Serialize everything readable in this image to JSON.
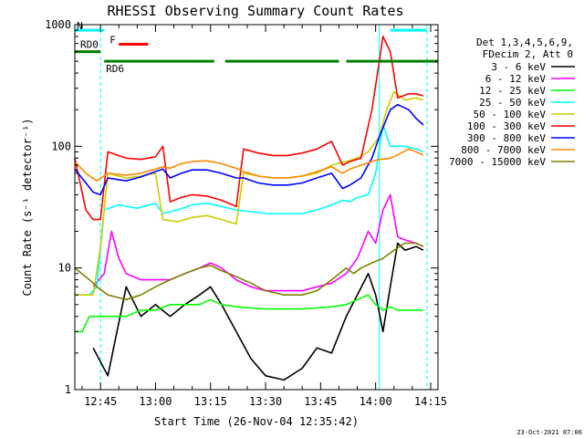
{
  "chart_data": {
    "type": "line",
    "title": "RHESSI Observing Summary Count Rates",
    "xlabel": "Start Time (26-Nov-04 12:35:42)",
    "ylabel": "Count Rate (s⁻¹ detector⁻¹)",
    "ylog": true,
    "ylim": [
      1,
      1000
    ],
    "xlim_minutes": [
      38,
      137
    ],
    "x_ticks": [
      {
        "label": "12:45",
        "minute": 45
      },
      {
        "label": "13:00",
        "minute": 60
      },
      {
        "label": "13:15",
        "minute": 75
      },
      {
        "label": "13:30",
        "minute": 90
      },
      {
        "label": "13:45",
        "minute": 105
      },
      {
        "label": "14:00",
        "minute": 120
      },
      {
        "label": "14:15",
        "minute": 135
      }
    ],
    "y_ticks": [
      {
        "label": "1",
        "value": 1
      },
      {
        "label": "10",
        "value": 10
      },
      {
        "label": "100",
        "value": 100
      },
      {
        "label": "1000",
        "value": 1000
      }
    ],
    "legend_header": [
      "Det 1,3,4,5,6,9,",
      "FDecim 2, Att 0"
    ],
    "legend_placement": "right",
    "series": [
      {
        "name": "3 - 6 keV",
        "color": "#000000",
        "points": [
          [
            43,
            2.2
          ],
          [
            47,
            1.3
          ],
          [
            52,
            7
          ],
          [
            56,
            4
          ],
          [
            60,
            5
          ],
          [
            64,
            4
          ],
          [
            68,
            5
          ],
          [
            72,
            6
          ],
          [
            75,
            7
          ],
          [
            78,
            5
          ],
          [
            82,
            3
          ],
          [
            86,
            1.8
          ],
          [
            90,
            1.3
          ],
          [
            95,
            1.2
          ],
          [
            100,
            1.5
          ],
          [
            104,
            2.2
          ],
          [
            108,
            2
          ],
          [
            112,
            4
          ],
          [
            115,
            6
          ],
          [
            118,
            9
          ],
          [
            120,
            6
          ],
          [
            122,
            3
          ],
          [
            124,
            7
          ],
          [
            126,
            16
          ],
          [
            128,
            14
          ],
          [
            131,
            15
          ],
          [
            133,
            14
          ]
        ]
      },
      {
        "name": "6 - 12 keV",
        "color": "#ff00ff",
        "points": [
          [
            43,
            7
          ],
          [
            46,
            9
          ],
          [
            48,
            20
          ],
          [
            50,
            12
          ],
          [
            52,
            9
          ],
          [
            56,
            8
          ],
          [
            60,
            8
          ],
          [
            64,
            8
          ],
          [
            68,
            9
          ],
          [
            72,
            10
          ],
          [
            75,
            11
          ],
          [
            78,
            10
          ],
          [
            82,
            8
          ],
          [
            86,
            7
          ],
          [
            90,
            6.5
          ],
          [
            95,
            6.5
          ],
          [
            100,
            6.5
          ],
          [
            104,
            7
          ],
          [
            108,
            7.5
          ],
          [
            112,
            9
          ],
          [
            115,
            12
          ],
          [
            118,
            20
          ],
          [
            120,
            16
          ],
          [
            122,
            30
          ],
          [
            124,
            40
          ],
          [
            126,
            18
          ],
          [
            128,
            17
          ],
          [
            131,
            16
          ],
          [
            133,
            15
          ]
        ]
      },
      {
        "name": "12 - 25 keV",
        "color": "#00ff00",
        "points": [
          [
            38,
            3
          ],
          [
            40,
            3
          ],
          [
            42,
            4
          ],
          [
            47,
            4
          ],
          [
            52,
            4
          ],
          [
            56,
            4.5
          ],
          [
            60,
            4.5
          ],
          [
            64,
            5
          ],
          [
            68,
            5
          ],
          [
            72,
            5
          ],
          [
            75,
            5.5
          ],
          [
            78,
            5
          ],
          [
            82,
            4.8
          ],
          [
            86,
            4.7
          ],
          [
            90,
            4.6
          ],
          [
            95,
            4.6
          ],
          [
            100,
            4.6
          ],
          [
            104,
            4.7
          ],
          [
            108,
            4.8
          ],
          [
            112,
            5
          ],
          [
            115,
            5.5
          ],
          [
            118,
            6
          ],
          [
            120,
            5
          ],
          [
            122,
            4.5
          ],
          [
            124,
            4.8
          ],
          [
            126,
            4.5
          ],
          [
            128,
            4.5
          ],
          [
            131,
            4.5
          ],
          [
            133,
            4.5
          ]
        ]
      },
      {
        "name": "25 - 50 keV",
        "color": "#00ffff",
        "points": [
          [
            38,
            6
          ],
          [
            42,
            6
          ],
          [
            44,
            7
          ],
          [
            46,
            30
          ],
          [
            50,
            33
          ],
          [
            55,
            31
          ],
          [
            60,
            34
          ],
          [
            62,
            28
          ],
          [
            66,
            30
          ],
          [
            70,
            33
          ],
          [
            74,
            34
          ],
          [
            78,
            32
          ],
          [
            82,
            30
          ],
          [
            86,
            29
          ],
          [
            90,
            28
          ],
          [
            95,
            28
          ],
          [
            100,
            28
          ],
          [
            104,
            30
          ],
          [
            108,
            33
          ],
          [
            111,
            36
          ],
          [
            113,
            35
          ],
          [
            115,
            38
          ],
          [
            118,
            40
          ],
          [
            120,
            60
          ],
          [
            122,
            150
          ],
          [
            124,
            100
          ],
          [
            128,
            100
          ],
          [
            131,
            95
          ],
          [
            133,
            90
          ]
        ]
      },
      {
        "name": "50 - 100 keV",
        "color": "#cccc00",
        "points": [
          [
            38,
            6
          ],
          [
            43,
            6
          ],
          [
            45,
            15
          ],
          [
            47,
            60
          ],
          [
            52,
            55
          ],
          [
            56,
            57
          ],
          [
            60,
            60
          ],
          [
            62,
            25
          ],
          [
            66,
            24
          ],
          [
            70,
            26
          ],
          [
            74,
            27
          ],
          [
            78,
            25
          ],
          [
            82,
            23
          ],
          [
            84,
            60
          ],
          [
            88,
            57
          ],
          [
            92,
            55
          ],
          [
            96,
            55
          ],
          [
            100,
            57
          ],
          [
            104,
            60
          ],
          [
            108,
            70
          ],
          [
            112,
            75
          ],
          [
            115,
            80
          ],
          [
            118,
            90
          ],
          [
            121,
            120
          ],
          [
            123,
            200
          ],
          [
            125,
            280
          ],
          [
            128,
            240
          ],
          [
            131,
            250
          ],
          [
            133,
            240
          ]
        ]
      },
      {
        "name": "100 - 300 keV",
        "color": "#ff0000",
        "points": [
          [
            38,
            80
          ],
          [
            41,
            30
          ],
          [
            43,
            25
          ],
          [
            45,
            25
          ],
          [
            47,
            90
          ],
          [
            52,
            80
          ],
          [
            56,
            78
          ],
          [
            60,
            82
          ],
          [
            62,
            100
          ],
          [
            64,
            35
          ],
          [
            67,
            38
          ],
          [
            70,
            40
          ],
          [
            74,
            39
          ],
          [
            78,
            36
          ],
          [
            82,
            32
          ],
          [
            84,
            95
          ],
          [
            88,
            88
          ],
          [
            92,
            84
          ],
          [
            96,
            84
          ],
          [
            100,
            88
          ],
          [
            104,
            95
          ],
          [
            108,
            110
          ],
          [
            111,
            70
          ],
          [
            113,
            75
          ],
          [
            116,
            80
          ],
          [
            119,
            200
          ],
          [
            121,
            500
          ],
          [
            122,
            800
          ],
          [
            124,
            600
          ],
          [
            126,
            250
          ],
          [
            129,
            270
          ],
          [
            131,
            270
          ],
          [
            133,
            260
          ]
        ]
      },
      {
        "name": "300 - 800 keV",
        "color": "#0000ff",
        "points": [
          [
            38,
            65
          ],
          [
            41,
            50
          ],
          [
            43,
            42
          ],
          [
            45,
            40
          ],
          [
            47,
            55
          ],
          [
            52,
            52
          ],
          [
            56,
            56
          ],
          [
            60,
            62
          ],
          [
            62,
            65
          ],
          [
            64,
            55
          ],
          [
            67,
            60
          ],
          [
            70,
            64
          ],
          [
            74,
            64
          ],
          [
            78,
            60
          ],
          [
            82,
            55
          ],
          [
            84,
            55
          ],
          [
            88,
            50
          ],
          [
            92,
            48
          ],
          [
            96,
            48
          ],
          [
            100,
            50
          ],
          [
            104,
            55
          ],
          [
            108,
            60
          ],
          [
            111,
            45
          ],
          [
            113,
            48
          ],
          [
            116,
            55
          ],
          [
            119,
            80
          ],
          [
            121,
            120
          ],
          [
            124,
            200
          ],
          [
            126,
            220
          ],
          [
            129,
            200
          ],
          [
            131,
            170
          ],
          [
            133,
            150
          ]
        ]
      },
      {
        "name": "800 - 7000 keV",
        "color": "#ff8800",
        "points": [
          [
            38,
            75
          ],
          [
            41,
            60
          ],
          [
            44,
            52
          ],
          [
            47,
            60
          ],
          [
            52,
            58
          ],
          [
            56,
            60
          ],
          [
            60,
            65
          ],
          [
            62,
            68
          ],
          [
            64,
            66
          ],
          [
            67,
            72
          ],
          [
            70,
            75
          ],
          [
            74,
            76
          ],
          [
            78,
            72
          ],
          [
            82,
            66
          ],
          [
            84,
            62
          ],
          [
            88,
            57
          ],
          [
            92,
            55
          ],
          [
            96,
            55
          ],
          [
            100,
            57
          ],
          [
            104,
            62
          ],
          [
            108,
            68
          ],
          [
            111,
            60
          ],
          [
            113,
            65
          ],
          [
            116,
            70
          ],
          [
            119,
            75
          ],
          [
            121,
            78
          ],
          [
            124,
            80
          ],
          [
            126,
            85
          ],
          [
            129,
            95
          ],
          [
            131,
            90
          ],
          [
            133,
            85
          ]
        ]
      },
      {
        "name": "7000 - 15000 keV",
        "color": "#808000",
        "points": [
          [
            38,
            10
          ],
          [
            42,
            8
          ],
          [
            44,
            7
          ],
          [
            47,
            6
          ],
          [
            52,
            5.5
          ],
          [
            56,
            6
          ],
          [
            60,
            7
          ],
          [
            64,
            8
          ],
          [
            68,
            9
          ],
          [
            72,
            10
          ],
          [
            75,
            10.5
          ],
          [
            78,
            9.5
          ],
          [
            82,
            8.5
          ],
          [
            86,
            7.5
          ],
          [
            90,
            6.5
          ],
          [
            95,
            6
          ],
          [
            100,
            6
          ],
          [
            104,
            6.5
          ],
          [
            108,
            8
          ],
          [
            112,
            10
          ],
          [
            114,
            9
          ],
          [
            116,
            10
          ],
          [
            119,
            11
          ],
          [
            122,
            12
          ],
          [
            125,
            14
          ],
          [
            128,
            16
          ],
          [
            131,
            16
          ],
          [
            133,
            15
          ]
        ]
      }
    ],
    "segments": [
      {
        "label": "N",
        "color": "#00ffff",
        "ranges": [
          [
            38,
            46
          ],
          [
            124,
            134
          ]
        ],
        "y": 900
      },
      {
        "label": "F",
        "color": "#ff0000",
        "ranges": [
          [
            50,
            58
          ]
        ],
        "y": 690
      },
      {
        "label": "RD0",
        "color": "#008000",
        "ranges": [
          [
            38,
            45
          ]
        ],
        "y": 600
      },
      {
        "label": "RD6",
        "color": "#008000",
        "ranges": [
          [
            46,
            62
          ],
          [
            62,
            76
          ],
          [
            79,
            110
          ],
          [
            112,
            137
          ]
        ],
        "y": 500
      }
    ],
    "vlines": [
      {
        "minute": 45,
        "color": "#00ffff",
        "style": "dashed"
      },
      {
        "minute": 121,
        "color": "#00ffff",
        "style": "solid"
      },
      {
        "minute": 134,
        "color": "#00ffff",
        "style": "dashed"
      }
    ],
    "stamp": "23-Oct-2021 07:06"
  }
}
